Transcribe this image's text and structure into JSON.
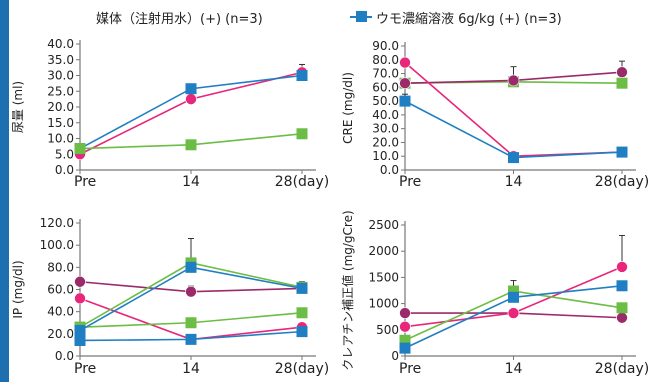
{
  "colors": {
    "left_bar": "#1e6fb0",
    "saline": "#e8267a",
    "treat_pink": "#e8267a",
    "treat_blue": "#1f7fc2",
    "treat_green": "#6cbd45",
    "treat_purple": "#9b2a6a"
  },
  "legend": {
    "saline_label": "媒体（注射用水）(+) (n=3)",
    "urine_label": "ウモ濃縮溶液 6g/kg (+) (n=3)"
  },
  "chart_data": [
    {
      "type": "line",
      "ylabel": "尿量 (ml)",
      "categories": [
        "Pre",
        "14",
        "28(day)"
      ],
      "ylim": [
        0,
        40
      ],
      "yticks": [
        "0.0",
        "5.0",
        "10.0",
        "15.0",
        "20.0",
        "25.0",
        "30.0",
        "35.0",
        "40.0"
      ],
      "grid": false,
      "series": [
        {
          "color": "#e8267a",
          "marker": "circle",
          "values": [
            5.0,
            22.5,
            31.0
          ],
          "errors": [
            0.5,
            0.8,
            2.5
          ]
        },
        {
          "color": "#1f7fc2",
          "marker": "square",
          "values": [
            6.8,
            25.8,
            30.0
          ],
          "errors": [
            0,
            0,
            0
          ]
        },
        {
          "color": "#6cbd45",
          "marker": "square",
          "values": [
            6.8,
            8.0,
            11.5
          ],
          "errors": [
            0,
            0,
            0
          ]
        }
      ]
    },
    {
      "type": "line",
      "ylabel": "CRE (mg/dl)",
      "categories": [
        "Pre",
        "14",
        "28(day)"
      ],
      "ylim": [
        0,
        90
      ],
      "yticks": [
        "0.0",
        "10.0",
        "20.0",
        "30.0",
        "40.0",
        "50.0",
        "60.0",
        "70.0",
        "80.0",
        "90.0"
      ],
      "grid": false,
      "series": [
        {
          "color": "#6cbd45",
          "marker": "square",
          "values": [
            63,
            64,
            63
          ],
          "errors": [
            0,
            0,
            0
          ]
        },
        {
          "color": "#9b2a6a",
          "marker": "circle",
          "values": [
            63,
            65,
            71
          ],
          "errors": [
            0,
            10,
            8
          ]
        },
        {
          "color": "#e8267a",
          "marker": "circle",
          "values": [
            78,
            10,
            13
          ],
          "errors": [
            0,
            0,
            0
          ]
        },
        {
          "color": "#1f7fc2",
          "marker": "square",
          "values": [
            50,
            9,
            13
          ],
          "errors": [
            5,
            0,
            0
          ]
        }
      ]
    },
    {
      "type": "line",
      "ylabel": "IP (mg/dl)",
      "categories": [
        "Pre",
        "14",
        "28(day)"
      ],
      "ylim": [
        0,
        120
      ],
      "yticks": [
        "0.0",
        "20.0",
        "40.0",
        "60.0",
        "80.0",
        "100.0",
        "120.0"
      ],
      "grid": false,
      "series": [
        {
          "color": "#9b2a6a",
          "marker": "circle",
          "values": [
            67,
            58,
            61
          ],
          "errors": [
            0,
            5,
            5
          ]
        },
        {
          "color": "#e8267a",
          "marker": "circle",
          "values": [
            52,
            15,
            26
          ],
          "errors": [
            0,
            0,
            0
          ]
        },
        {
          "color": "#6cbd45",
          "marker": "square",
          "values": [
            26,
            84,
            62
          ],
          "errors": [
            0,
            22,
            5
          ]
        },
        {
          "color": "#6cbd45",
          "marker": "square",
          "values": [
            26,
            30,
            39
          ],
          "errors": [
            0,
            0,
            0
          ]
        },
        {
          "color": "#1f7fc2",
          "marker": "square",
          "values": [
            14,
            15,
            22
          ],
          "errors": [
            0,
            0,
            0
          ]
        },
        {
          "color": "#1f7fc2",
          "marker": "square",
          "values": [
            23,
            80,
            61
          ],
          "errors": [
            0,
            0,
            0
          ]
        }
      ]
    },
    {
      "type": "line",
      "ylabel": "クレアチン補正値 (mg/gCre)",
      "categories": [
        "Pre",
        "14",
        "28(day)"
      ],
      "ylim": [
        0,
        2500
      ],
      "yticks": [
        "0",
        "500",
        "1000",
        "1500",
        "2000",
        "2500"
      ],
      "grid": false,
      "series": [
        {
          "color": "#9b2a6a",
          "marker": "circle",
          "values": [
            820,
            820,
            730
          ],
          "errors": [
            0,
            0,
            0
          ]
        },
        {
          "color": "#e8267a",
          "marker": "circle",
          "values": [
            560,
            820,
            1700
          ],
          "errors": [
            0,
            0,
            600
          ]
        },
        {
          "color": "#6cbd45",
          "marker": "square",
          "values": [
            300,
            1240,
            920
          ],
          "errors": [
            0,
            200,
            0
          ]
        },
        {
          "color": "#1f7fc2",
          "marker": "square",
          "values": [
            150,
            1120,
            1340
          ],
          "errors": [
            0,
            0,
            0
          ]
        }
      ]
    }
  ]
}
